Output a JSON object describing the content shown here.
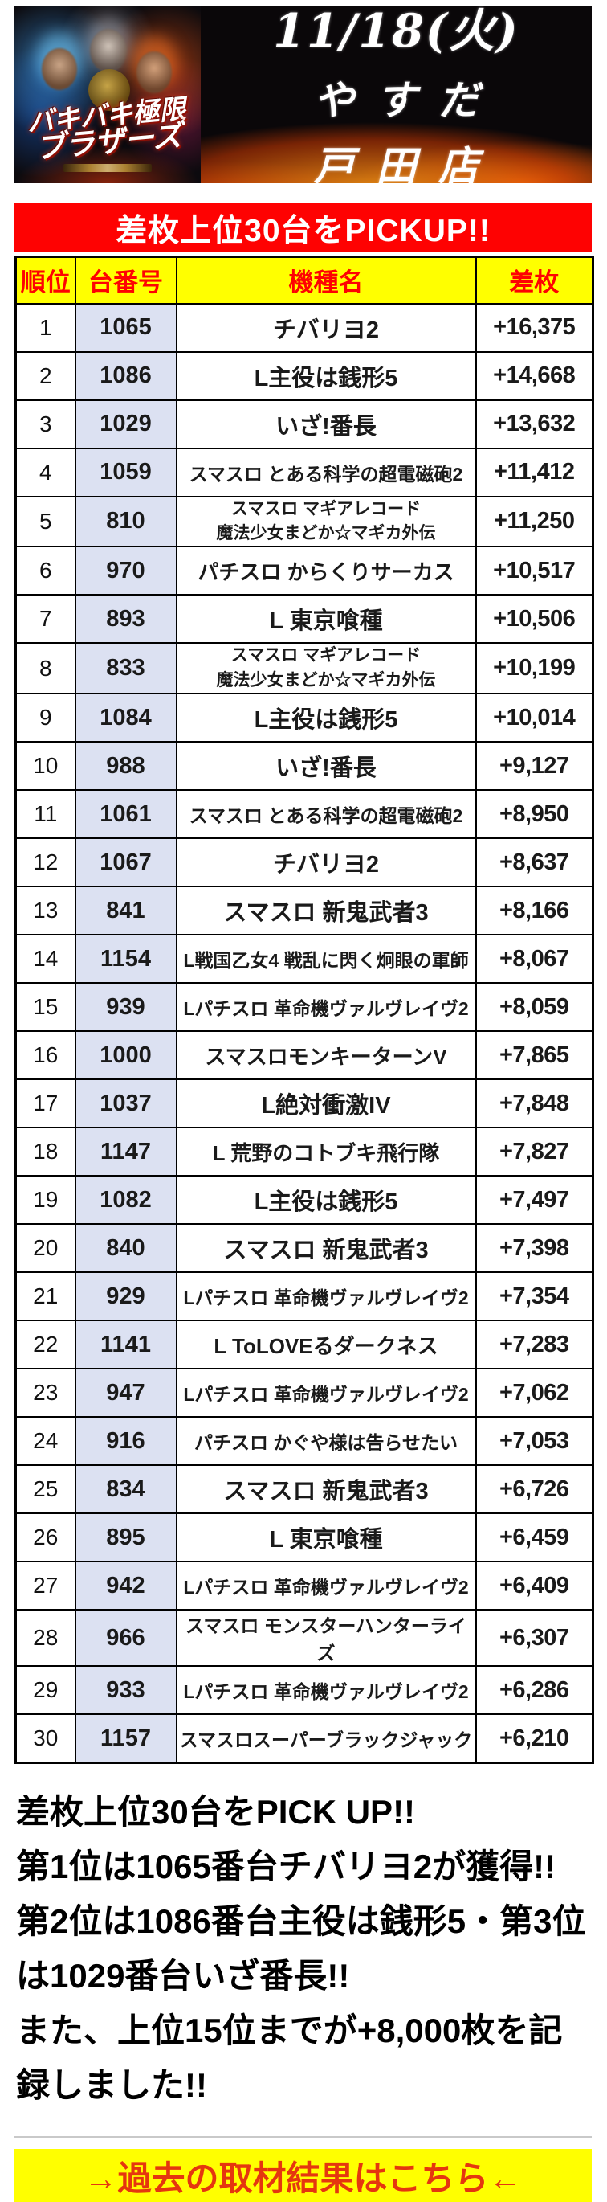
{
  "header": {
    "date": "11/18(火)",
    "store_line1": "やすだ",
    "store_line2": "戸田店",
    "art_title_line1": "バキバキ極限",
    "art_title_line2": "ブラザーズ"
  },
  "pickup_banner": {
    "title": "差枚上位30台をPICKUP!!"
  },
  "table": {
    "columns": [
      "順位",
      "台番号",
      "機種名",
      "差枚"
    ],
    "rows": [
      {
        "rank": "1",
        "machine": "1065",
        "name": "チバリヨ2",
        "diff": "+16,375"
      },
      {
        "rank": "2",
        "machine": "1086",
        "name": "L主役は銭形5",
        "diff": "+14,668"
      },
      {
        "rank": "3",
        "machine": "1029",
        "name": "いざ!番長",
        "diff": "+13,632"
      },
      {
        "rank": "4",
        "machine": "1059",
        "name": "スマスロ とある科学の超電磁砲2",
        "diff": "+11,412"
      },
      {
        "rank": "5",
        "machine": "810",
        "name": "スマスロ マギアレコード\n魔法少女まどか☆マギカ外伝",
        "diff": "+11,250"
      },
      {
        "rank": "6",
        "machine": "970",
        "name": "パチスロ からくりサーカス",
        "diff": "+10,517"
      },
      {
        "rank": "7",
        "machine": "893",
        "name": "L 東京喰種",
        "diff": "+10,506"
      },
      {
        "rank": "8",
        "machine": "833",
        "name": "スマスロ マギアレコード\n魔法少女まどか☆マギカ外伝",
        "diff": "+10,199"
      },
      {
        "rank": "9",
        "machine": "1084",
        "name": "L主役は銭形5",
        "diff": "+10,014"
      },
      {
        "rank": "10",
        "machine": "988",
        "name": "いざ!番長",
        "diff": "+9,127"
      },
      {
        "rank": "11",
        "machine": "1061",
        "name": "スマスロ とある科学の超電磁砲2",
        "diff": "+8,950"
      },
      {
        "rank": "12",
        "machine": "1067",
        "name": "チバリヨ2",
        "diff": "+8,637"
      },
      {
        "rank": "13",
        "machine": "841",
        "name": "スマスロ 新鬼武者3",
        "diff": "+8,166"
      },
      {
        "rank": "14",
        "machine": "1154",
        "name": "L戦国乙女4 戦乱に閃く炯眼の軍師",
        "diff": "+8,067"
      },
      {
        "rank": "15",
        "machine": "939",
        "name": "Lパチスロ 革命機ヴァルヴレイヴ2",
        "diff": "+8,059"
      },
      {
        "rank": "16",
        "machine": "1000",
        "name": "スマスロモンキーターンV",
        "diff": "+7,865"
      },
      {
        "rank": "17",
        "machine": "1037",
        "name": "L絶対衝激IV",
        "diff": "+7,848"
      },
      {
        "rank": "18",
        "machine": "1147",
        "name": "L 荒野のコトブキ飛行隊",
        "diff": "+7,827"
      },
      {
        "rank": "19",
        "machine": "1082",
        "name": "L主役は銭形5",
        "diff": "+7,497"
      },
      {
        "rank": "20",
        "machine": "840",
        "name": "スマスロ 新鬼武者3",
        "diff": "+7,398"
      },
      {
        "rank": "21",
        "machine": "929",
        "name": "Lパチスロ 革命機ヴァルヴレイヴ2",
        "diff": "+7,354"
      },
      {
        "rank": "22",
        "machine": "1141",
        "name": "L ToLOVEるダークネス",
        "diff": "+7,283"
      },
      {
        "rank": "23",
        "machine": "947",
        "name": "Lパチスロ 革命機ヴァルヴレイヴ2",
        "diff": "+7,062"
      },
      {
        "rank": "24",
        "machine": "916",
        "name": "パチスロ かぐや様は告らせたい",
        "diff": "+7,053"
      },
      {
        "rank": "25",
        "machine": "834",
        "name": "スマスロ 新鬼武者3",
        "diff": "+6,726"
      },
      {
        "rank": "26",
        "machine": "895",
        "name": "L 東京喰種",
        "diff": "+6,459"
      },
      {
        "rank": "27",
        "machine": "942",
        "name": "Lパチスロ 革命機ヴァルヴレイヴ2",
        "diff": "+6,409"
      },
      {
        "rank": "28",
        "machine": "966",
        "name": "スマスロ モンスターハンターライズ",
        "diff": "+6,307"
      },
      {
        "rank": "29",
        "machine": "933",
        "name": "Lパチスロ 革命機ヴァルヴレイヴ2",
        "diff": "+6,286"
      },
      {
        "rank": "30",
        "machine": "1157",
        "name": "スマスロスーパーブラックジャック",
        "diff": "+6,210"
      }
    ]
  },
  "summary": {
    "lines": [
      "差枚上位30台をPICK UP!!",
      "第1位は1065番台チバリヨ2が獲得!!",
      "第2位は1086番台主役は銭形5・第3位は1029番台いざ番長!!",
      "また、上位15位までが+8,000枚を記録しました!!"
    ]
  },
  "footer": {
    "past_results_label": "→過去の取材結果はこちら←"
  },
  "colors": {
    "accent_red": "#fe0202",
    "header_yellow": "#ffff00",
    "machine_number_column_bg": "#dce1f2",
    "footer_text_red": "#e5360f"
  }
}
